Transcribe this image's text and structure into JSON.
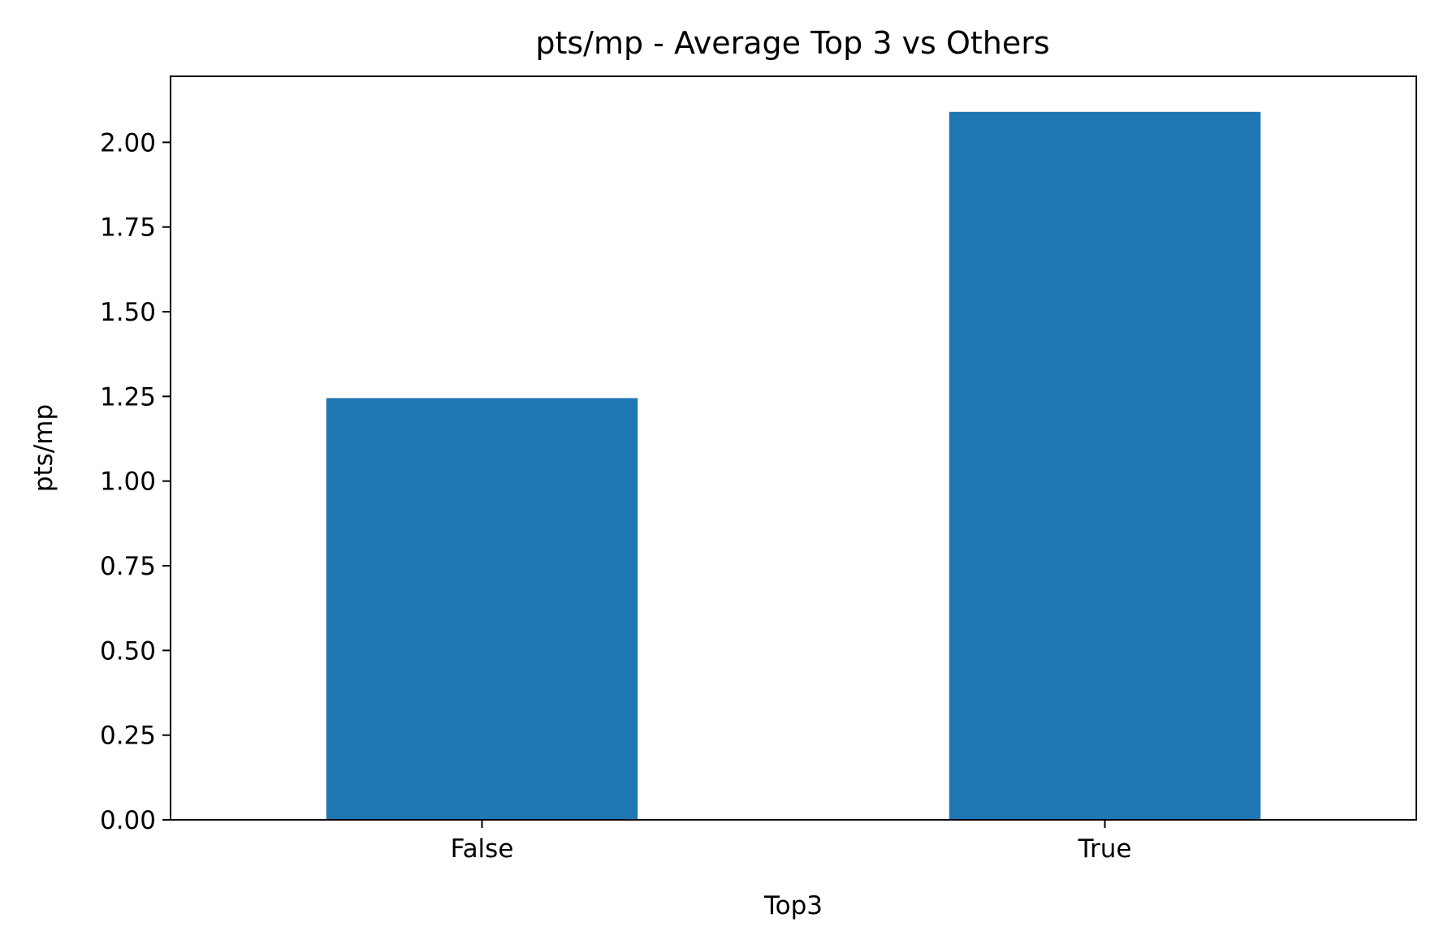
{
  "chart_data": {
    "type": "bar",
    "title": "pts/mp - Average Top 3 vs Others",
    "xlabel": "Top3",
    "ylabel": "pts/mp",
    "categories": [
      "False",
      "True"
    ],
    "values": [
      1.245,
      2.09
    ],
    "ylim": [
      0,
      2.195
    ],
    "yticks": [
      "0.00",
      "0.25",
      "0.50",
      "0.75",
      "1.00",
      "1.25",
      "1.50",
      "1.75",
      "2.00"
    ],
    "grid": false,
    "legend": "none",
    "bar_color": "#1f77b4"
  }
}
